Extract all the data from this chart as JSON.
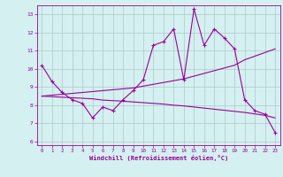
{
  "xlabel": "Windchill (Refroidissement éolien,°C)",
  "x_values": [
    0,
    1,
    2,
    3,
    4,
    5,
    6,
    7,
    8,
    9,
    10,
    11,
    12,
    13,
    14,
    15,
    16,
    17,
    18,
    19,
    20,
    21,
    22,
    23
  ],
  "line1_y": [
    10.2,
    9.3,
    8.7,
    8.3,
    8.1,
    7.3,
    7.9,
    7.7,
    8.3,
    8.8,
    9.4,
    11.3,
    11.5,
    12.2,
    9.4,
    13.3,
    11.3,
    12.2,
    11.7,
    11.1,
    8.3,
    7.7,
    7.5,
    6.5
  ],
  "line2_y": [
    8.5,
    8.55,
    8.6,
    8.65,
    8.7,
    8.75,
    8.8,
    8.85,
    8.9,
    8.95,
    9.05,
    9.15,
    9.25,
    9.35,
    9.45,
    9.6,
    9.75,
    9.9,
    10.05,
    10.2,
    10.5,
    10.7,
    10.9,
    11.1
  ],
  "line3_y": [
    8.5,
    8.47,
    8.44,
    8.41,
    8.38,
    8.35,
    8.28,
    8.25,
    8.22,
    8.18,
    8.14,
    8.1,
    8.06,
    8.0,
    7.96,
    7.9,
    7.84,
    7.78,
    7.72,
    7.66,
    7.6,
    7.52,
    7.44,
    7.3
  ],
  "line_color": "#990099",
  "bg_color": "#d4f0f0",
  "grid_color": "#b0c8c8",
  "ylim": [
    5.8,
    13.5
  ],
  "yticks": [
    6,
    7,
    8,
    9,
    10,
    11,
    12,
    13
  ],
  "xlim": [
    -0.5,
    23.5
  ],
  "xticks": [
    0,
    1,
    2,
    3,
    4,
    5,
    6,
    7,
    8,
    9,
    10,
    11,
    12,
    13,
    14,
    15,
    16,
    17,
    18,
    19,
    20,
    21,
    22,
    23
  ]
}
